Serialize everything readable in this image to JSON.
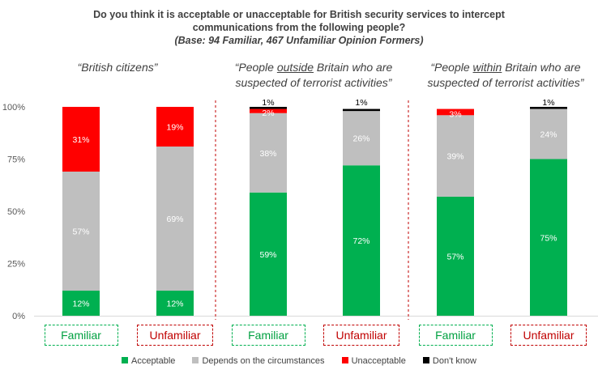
{
  "title_lines": [
    "Do you think it is acceptable or unacceptable for British security services to intercept",
    "communications from the following people?"
  ],
  "base_line": "(Base: 94 Familiar, 467 Unfamiliar Opinion Formers)",
  "groups": [
    {
      "pre": "“British citizens”",
      "u": "",
      "post": "",
      "line2": ""
    },
    {
      "pre": "“People ",
      "u": "outside",
      "post": " Britain who are",
      "line2": "suspected of terrorist activities”"
    },
    {
      "pre": "“People ",
      "u": "within",
      "post": " Britain who are",
      "line2": "suspected of terrorist activities”"
    }
  ],
  "colors": {
    "acceptable": "#00b050",
    "depends": "#bfbfbf",
    "unacceptable": "#ff0000",
    "dont_know": "#000000",
    "familiar_border": "#00b050",
    "familiar_text": "#00a040",
    "unfamiliar_border": "#c00000",
    "unfamiliar_text": "#c00000",
    "divider": "#c00000"
  },
  "chart_data": {
    "type": "bar",
    "stacked": true,
    "title": "Do you think it is acceptable or unacceptable for British security services to intercept communications from the following people?",
    "subtitle": "(Base: 94 Familiar, 467 Unfamiliar Opinion Formers)",
    "categories": [
      "Familiar",
      "Unfamiliar",
      "Familiar",
      "Unfamiliar",
      "Familiar",
      "Unfamiliar"
    ],
    "yticks": [
      "0%",
      "25%",
      "50%",
      "75%",
      "100%"
    ],
    "ylim": [
      0,
      100
    ],
    "series": [
      {
        "name": "Acceptable",
        "key": "acceptable",
        "values": [
          12,
          12,
          59,
          72,
          57,
          75
        ],
        "labels": [
          "12%",
          "12%",
          "59%",
          "72%",
          "57%",
          "75%"
        ]
      },
      {
        "name": "Depends on the circumstances",
        "key": "depends",
        "values": [
          57,
          69,
          38,
          26,
          39,
          24
        ],
        "labels": [
          "57%",
          "69%",
          "38%",
          "26%",
          "39%",
          "24%"
        ]
      },
      {
        "name": "Unacceptable",
        "key": "unacceptable",
        "values": [
          31,
          19,
          2,
          0,
          3,
          0
        ],
        "labels": [
          "31%",
          "19%",
          "2%",
          "",
          "3%",
          ""
        ]
      },
      {
        "name": "Don't know",
        "key": "dont_know",
        "values": [
          0,
          0,
          1,
          1,
          0,
          1
        ],
        "labels": [
          "",
          "",
          "1%",
          "1%",
          "",
          "1%"
        ]
      }
    ],
    "legend_position": "bottom",
    "grid": false
  }
}
